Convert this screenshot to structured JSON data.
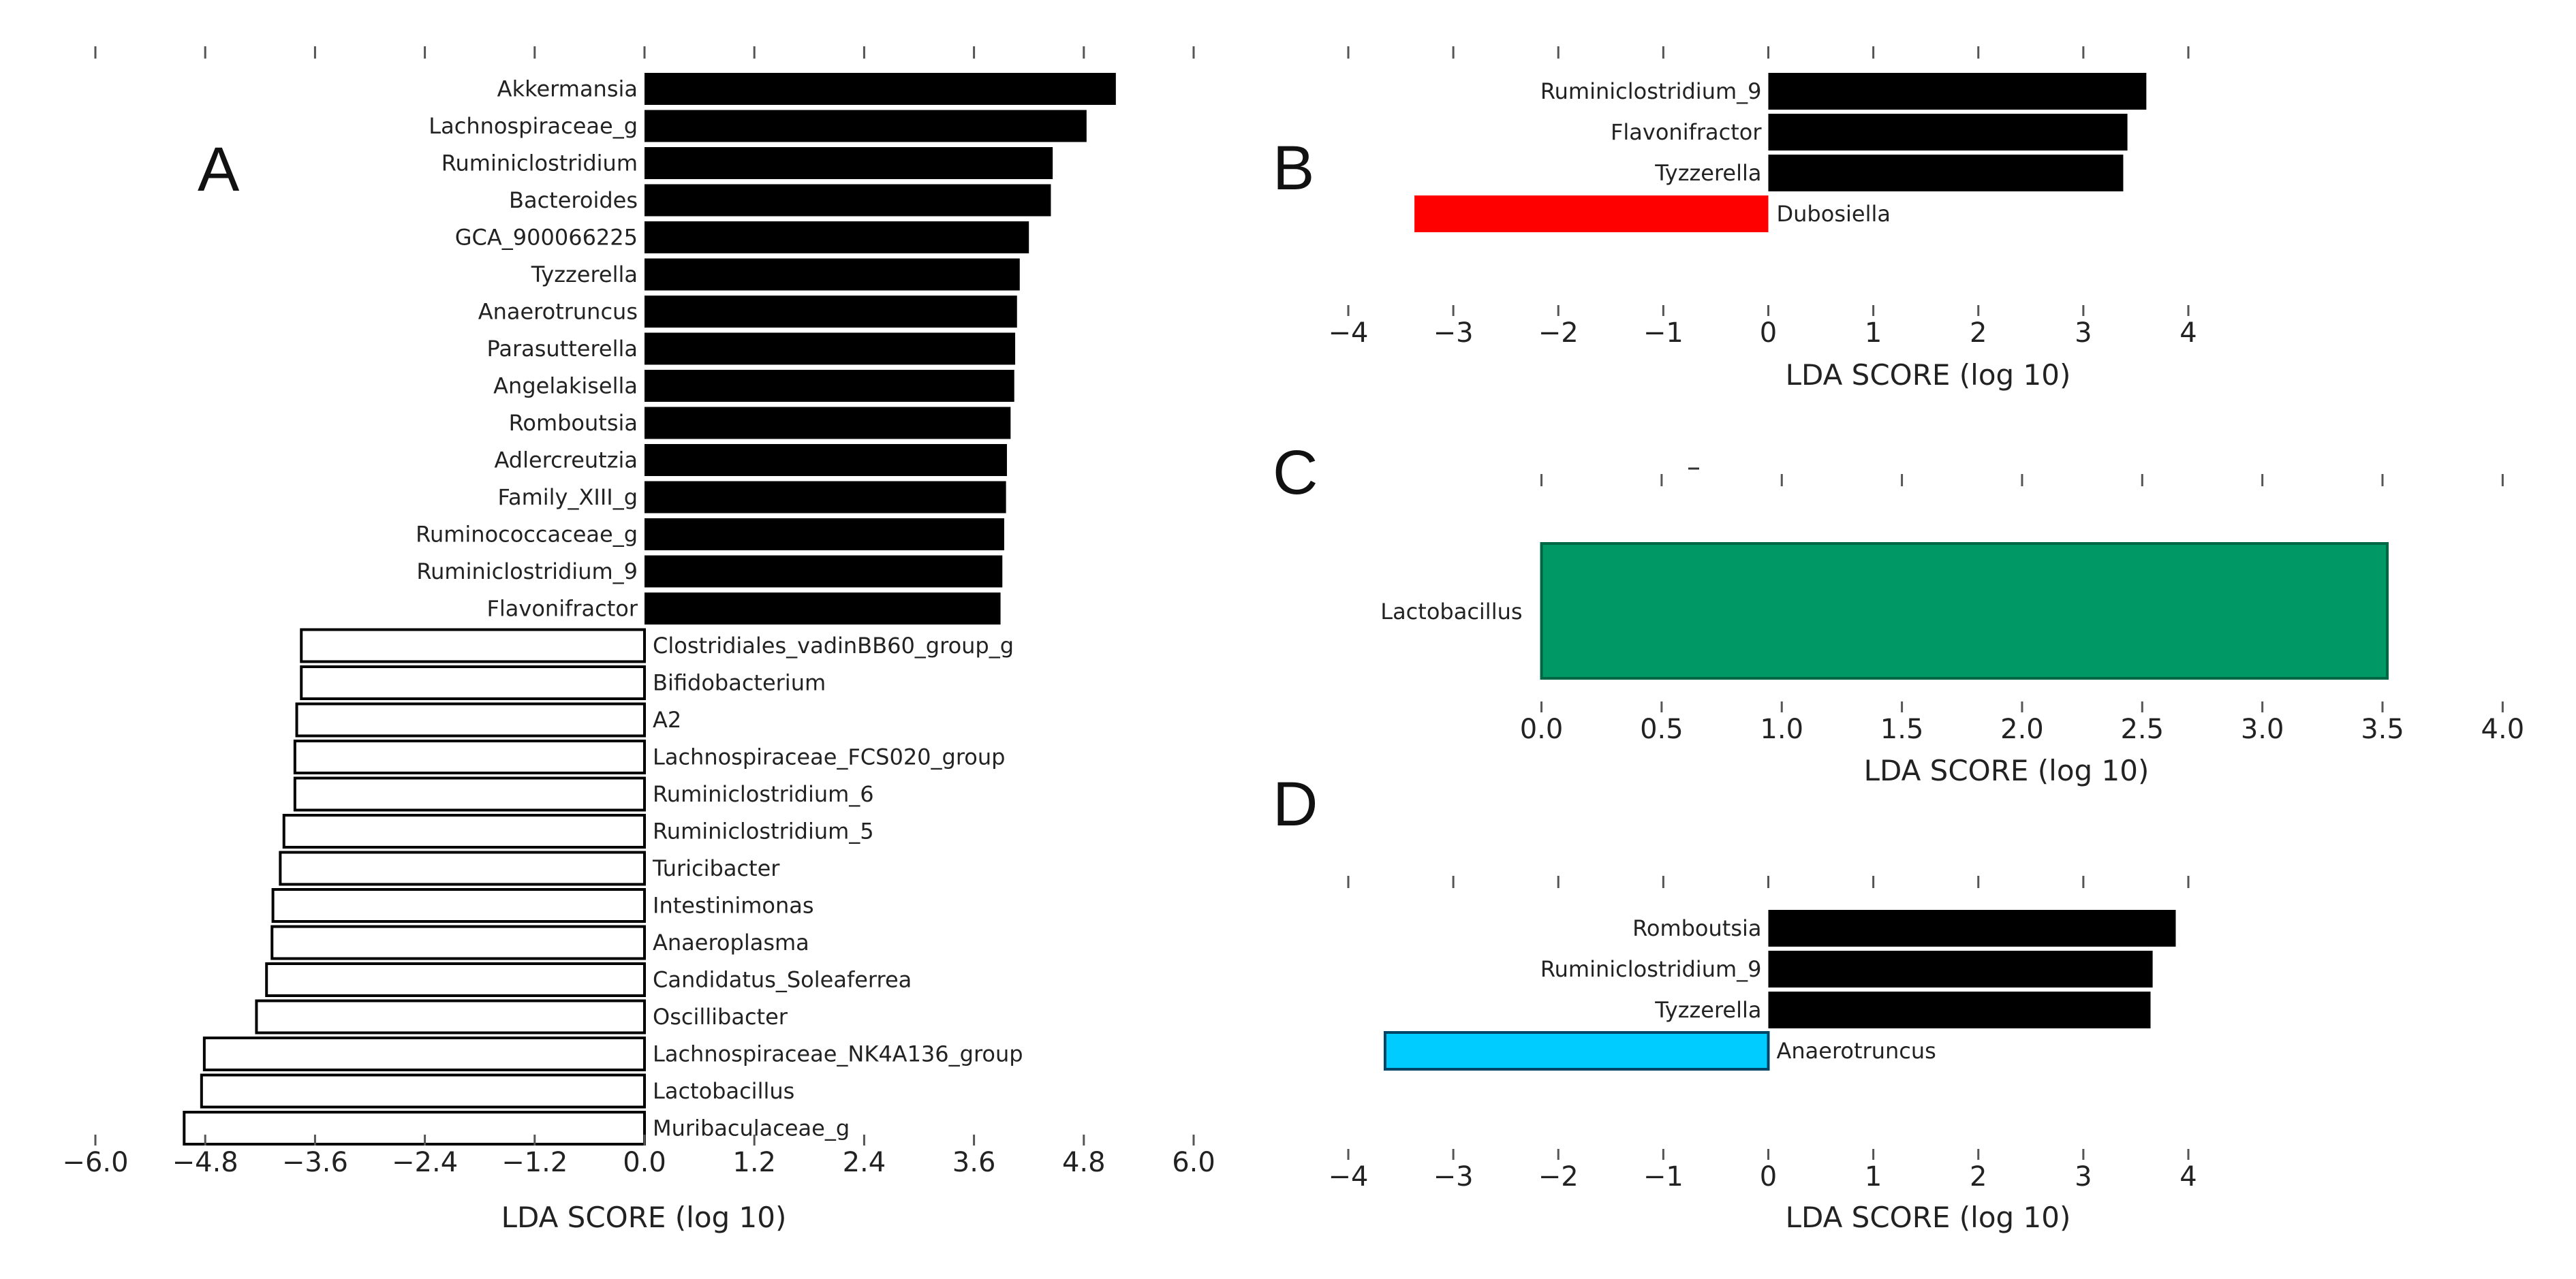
{
  "colors": {
    "positive": "#000000",
    "hollow_fill": "#ffffff",
    "hollow_stroke": "#000000",
    "panel_b_negative": "#ff0000",
    "panel_c_bar": "#009966",
    "panel_d_negative": "#00ccff"
  },
  "chart_data": [
    {
      "panel": "A",
      "type": "bar",
      "orientation": "horizontal",
      "xlabel": "LDA SCORE (log 10)",
      "xlim": [
        -6.0,
        6.0
      ],
      "xticks": [
        "−6.0",
        "−4.8",
        "−3.6",
        "−2.4",
        "−1.2",
        "0.0",
        "1.2",
        "2.4",
        "3.6",
        "4.8",
        "6.0"
      ],
      "categories": [
        "Akkermansia",
        "Lachnospiraceae_g",
        "Ruminiclostridium",
        "Bacteroides",
        "GCA_900066225",
        "Tyzzerella",
        "Anaerotruncus",
        "Parasutterella",
        "Angelakisella",
        "Romboutsia",
        "Adlercreutzia",
        "Family_XIII_g",
        "Ruminococcaceae_g",
        "Ruminiclostridium_9",
        "Flavonifractor",
        "Clostridiales_vadinBB60_group_g",
        "Bifidobacterium",
        "A2",
        "Lachnospiraceae_FCS020_group",
        "Ruminiclostridium_6",
        "Ruminiclostridium_5",
        "Turicibacter",
        "Intestinimonas",
        "Anaeroplasma",
        "Candidatus_Soleaferrea",
        "Oscillibacter",
        "Lachnospiraceae_NK4A136_group",
        "Lactobacillus",
        "Muribaculaceae_g"
      ],
      "values": [
        5.15,
        4.83,
        4.46,
        4.44,
        4.2,
        4.1,
        4.07,
        4.05,
        4.04,
        4.0,
        3.96,
        3.95,
        3.93,
        3.91,
        3.89,
        -3.75,
        -3.75,
        -3.8,
        -3.82,
        -3.82,
        -3.94,
        -3.98,
        -4.06,
        -4.07,
        -4.13,
        -4.24,
        -4.81,
        -4.84,
        -5.03
      ]
    },
    {
      "panel": "B",
      "type": "bar",
      "orientation": "horizontal",
      "xlabel": "LDA SCORE (log 10)",
      "xlim": [
        -4,
        4
      ],
      "xticks": [
        "−4",
        "−3",
        "−2",
        "−1",
        "0",
        "1",
        "2",
        "3",
        "4"
      ],
      "categories": [
        "Ruminiclostridium_9",
        "Flavonifractor",
        "Tyzzerella",
        "Dubosiella"
      ],
      "values": [
        3.6,
        3.42,
        3.38,
        -3.37
      ]
    },
    {
      "panel": "C",
      "type": "bar",
      "orientation": "horizontal",
      "xlabel": "LDA SCORE (log 10)",
      "xlim": [
        -0.2,
        4.05
      ],
      "xticks": [
        "0.0",
        "0.5",
        "1.0",
        "1.5",
        "2.0",
        "2.5",
        "3.0",
        "3.5",
        "4.0"
      ],
      "categories": [
        "Lactobacillus"
      ],
      "values": [
        3.52
      ]
    },
    {
      "panel": "D",
      "type": "bar",
      "orientation": "horizontal",
      "xlabel": "LDA SCORE (log 10)",
      "xlim": [
        -4,
        4
      ],
      "xticks": [
        "−4",
        "−3",
        "−2",
        "−1",
        "0",
        "1",
        "2",
        "3",
        "4"
      ],
      "categories": [
        "Romboutsia",
        "Ruminiclostridium_9",
        "Tyzzerella",
        "Anaerotruncus"
      ],
      "values": [
        3.88,
        3.66,
        3.64,
        -3.65
      ]
    }
  ]
}
